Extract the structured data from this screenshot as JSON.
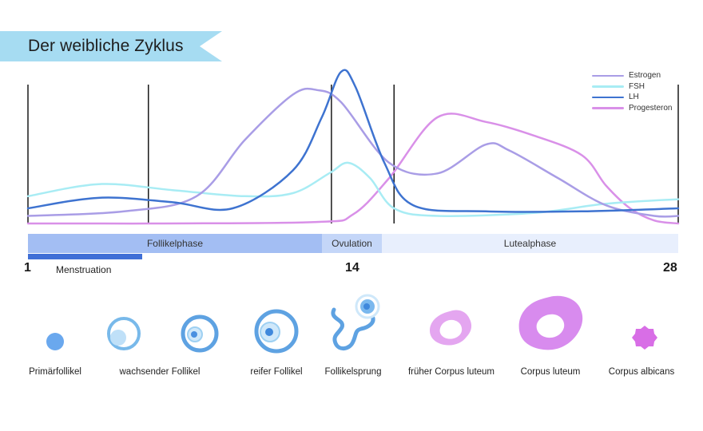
{
  "title": "Der weibliche Zyklus",
  "colors": {
    "banner": "#a6dcf2",
    "estrogen": "#a99de6",
    "fsh": "#a8ecf4",
    "lh": "#3e73d0",
    "progesterone": "#d990e8",
    "follikelphase_bar": "#a3bef3",
    "ovulation_bar": "#c4d6f8",
    "lutealphase_bar": "#e8effd",
    "menstruation_bar": "#3f6fd6"
  },
  "legend": [
    {
      "label": "Estrogen",
      "color": "#a99de6"
    },
    {
      "label": "FSH",
      "color": "#a8ecf4"
    },
    {
      "label": "LH",
      "color": "#3e73d0"
    },
    {
      "label": "Progesteron",
      "color": "#d990e8"
    }
  ],
  "chart_data": {
    "type": "line",
    "x_range": [
      1,
      28
    ],
    "y_range": [
      0,
      100
    ],
    "grid": false,
    "legend_position": "top-right",
    "phase_dividers": [
      1,
      6,
      13.6,
      16.2,
      28
    ],
    "series": [
      {
        "name": "Estrogen",
        "x": [
          1,
          5,
          8,
          10,
          12,
          13,
          14,
          16,
          18,
          20,
          21,
          23,
          25,
          27,
          28
        ],
        "values": [
          5,
          8,
          18,
          55,
          85,
          88,
          80,
          40,
          33,
          52,
          48,
          30,
          12,
          5,
          5
        ]
      },
      {
        "name": "FSH",
        "x": [
          1,
          4,
          7,
          10,
          12,
          13.5,
          14.3,
          15.2,
          16.2,
          18,
          22,
          25,
          28
        ],
        "values": [
          18,
          26,
          22,
          18,
          20,
          33,
          40,
          30,
          10,
          5,
          7,
          13,
          16
        ]
      },
      {
        "name": "LH",
        "x": [
          1,
          4,
          7,
          9.5,
          12,
          13.2,
          14,
          14.6,
          15.8,
          17,
          20,
          24,
          28
        ],
        "values": [
          10,
          17,
          14,
          10,
          35,
          70,
          100,
          90,
          40,
          12,
          8,
          8,
          10
        ]
      },
      {
        "name": "Progesteron",
        "x": [
          1,
          6,
          13,
          14.5,
          16,
          18,
          20,
          22,
          24,
          25,
          26,
          27,
          28
        ],
        "values": [
          0,
          0,
          1,
          6,
          30,
          70,
          67,
          58,
          45,
          25,
          10,
          2,
          0
        ]
      }
    ]
  },
  "phases": [
    {
      "label": "Follikelphase"
    },
    {
      "label": "Ovulation"
    },
    {
      "label": "Lutealphase"
    }
  ],
  "menstruation_label": "Menstruation",
  "day_labels": {
    "start": "1",
    "mid": "14",
    "end": "28"
  },
  "follicle_stages": [
    {
      "label": "Primärfollikel",
      "icon": "primary-follicle-icon"
    },
    {
      "label": "wachsender Follikel",
      "icon": "growing-follicle-icon"
    },
    {
      "label": "reifer Follikel",
      "icon": "mature-follicle-icon"
    },
    {
      "label": "Follikelsprung",
      "icon": "follicle-rupture-icon"
    },
    {
      "label": "früher Corpus luteum",
      "icon": "early-corpus-luteum-icon"
    },
    {
      "label": "Corpus luteum",
      "icon": "corpus-luteum-icon"
    },
    {
      "label": "Corpus albicans",
      "icon": "corpus-albicans-icon"
    }
  ]
}
